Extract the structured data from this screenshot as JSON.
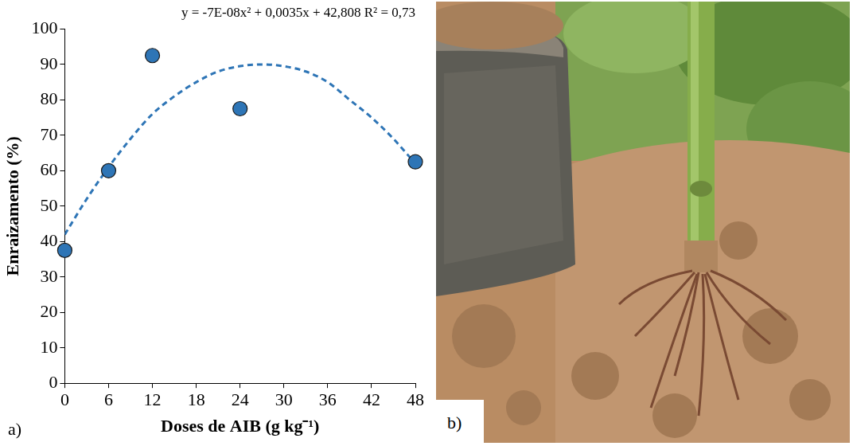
{
  "chart_data": {
    "type": "scatter",
    "title": "y = -7E-08x² + 0,0035x + 42,808 R² = 0,73",
    "x_label": "Doses de AIB (g kg⁻¹)",
    "y_label": "Enraizamento (%)",
    "panel_label": "a)",
    "xlim": [
      0,
      48
    ],
    "xticks": [
      0,
      6,
      12,
      18,
      24,
      30,
      36,
      42,
      48
    ],
    "ylim": [
      0,
      100
    ],
    "yticks": [
      0,
      10,
      20,
      30,
      40,
      50,
      60,
      70,
      80,
      90,
      100
    ],
    "grid": false,
    "series": [
      {
        "type": "scatter",
        "marker": "circle",
        "color": "#2e75b6",
        "x": [
          0,
          6,
          12,
          24,
          48
        ],
        "values": [
          37.5,
          60,
          92.5,
          77.5,
          62.5
        ]
      },
      {
        "type": "line",
        "line_style": "dashed",
        "marker": "none",
        "color": "#2e75b6",
        "x": [
          0,
          3,
          6,
          9,
          12,
          15,
          18,
          21,
          24,
          27,
          30,
          33,
          36,
          39,
          42,
          45,
          48
        ],
        "values": [
          42,
          52,
          61,
          69,
          76,
          81,
          85,
          88,
          89.5,
          90,
          89.5,
          88,
          85,
          80,
          75,
          69,
          62
        ]
      }
    ]
  },
  "photo": {
    "panel_label": "b)"
  }
}
